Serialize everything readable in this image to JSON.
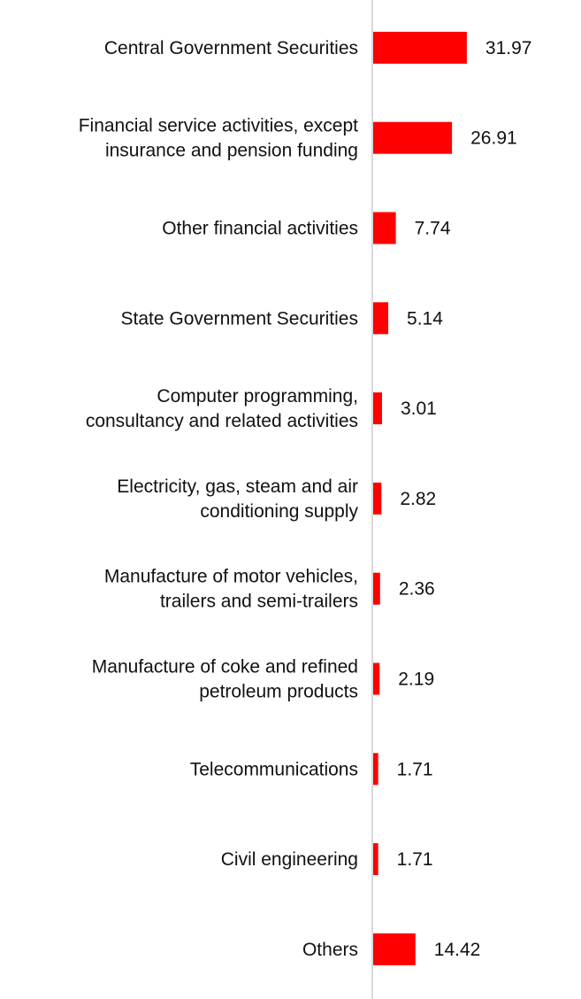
{
  "chart_data": {
    "type": "bar",
    "orientation": "horizontal",
    "title": "",
    "xlabel": "",
    "ylabel": "",
    "bar_color": "#ff0000",
    "axis_color": "#d9d9d9",
    "xlim": [
      0,
      33
    ],
    "grid": false,
    "legend": "none",
    "categories": [
      [
        "Central Government Securities"
      ],
      [
        "Financial service activities, except",
        "insurance and pension funding"
      ],
      [
        "Other financial activities"
      ],
      [
        "State Government Securities"
      ],
      [
        "Computer programming,",
        "consultancy and related activities"
      ],
      [
        "Electricity, gas, steam and air",
        "conditioning supply"
      ],
      [
        "Manufacture of motor vehicles,",
        "trailers and semi-trailers"
      ],
      [
        "Manufacture of coke and refined",
        "petroleum products"
      ],
      [
        "Telecommunications"
      ],
      [
        "Civil engineering"
      ],
      [
        "Others"
      ]
    ],
    "values": [
      31.97,
      26.91,
      7.74,
      5.14,
      3.01,
      2.82,
      2.36,
      2.19,
      1.71,
      1.71,
      14.42
    ],
    "value_labels": [
      "31.97",
      "26.91",
      "7.74",
      "5.14",
      "3.01",
      "2.82",
      "2.36",
      "2.19",
      "1.71",
      "1.71",
      "14.42"
    ]
  }
}
